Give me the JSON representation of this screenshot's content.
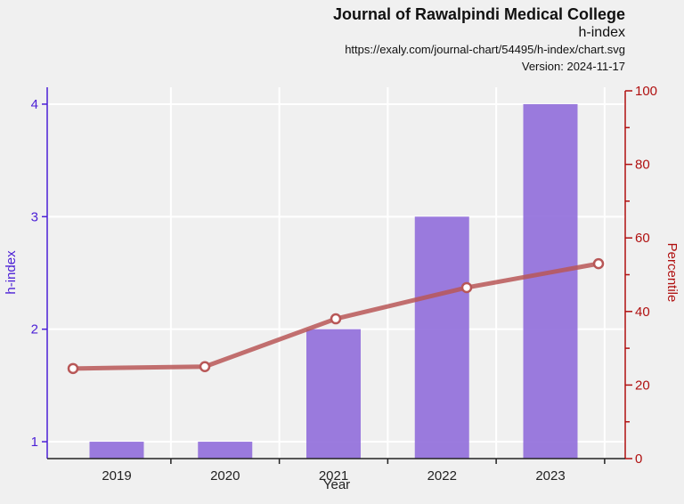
{
  "header": {
    "title": "Journal of Rawalpindi Medical College",
    "subtitle": "h-index",
    "url": "https://exaly.com/journal-chart/54495/h-index/chart.svg",
    "version": "Version: 2024-11-17"
  },
  "chart_data": {
    "type": "bar+line",
    "xlabel": "Year",
    "ylabel_left": "h-index",
    "ylabel_right": "Percentile",
    "categories": [
      "2019",
      "2020",
      "2021",
      "2022",
      "2023"
    ],
    "left_axis": {
      "min": 0.85,
      "max": 4.15,
      "ticks": [
        1,
        2,
        3,
        4
      ]
    },
    "right_axis": {
      "min": 0,
      "max": 100,
      "ticks": [
        0,
        20,
        40,
        60,
        80,
        100
      ]
    },
    "series": [
      {
        "name": "h-index",
        "type": "bar",
        "axis": "left",
        "values": [
          1,
          1,
          2,
          3,
          4
        ]
      },
      {
        "name": "Percentile",
        "type": "line",
        "axis": "right",
        "values": [
          24.5,
          25,
          38,
          46.5,
          53
        ]
      }
    ],
    "grid": true,
    "colors": {
      "bar": "#9370db",
      "line": "#b85757",
      "left_axis": "#4b1fd6",
      "right_axis": "#b01010"
    }
  }
}
